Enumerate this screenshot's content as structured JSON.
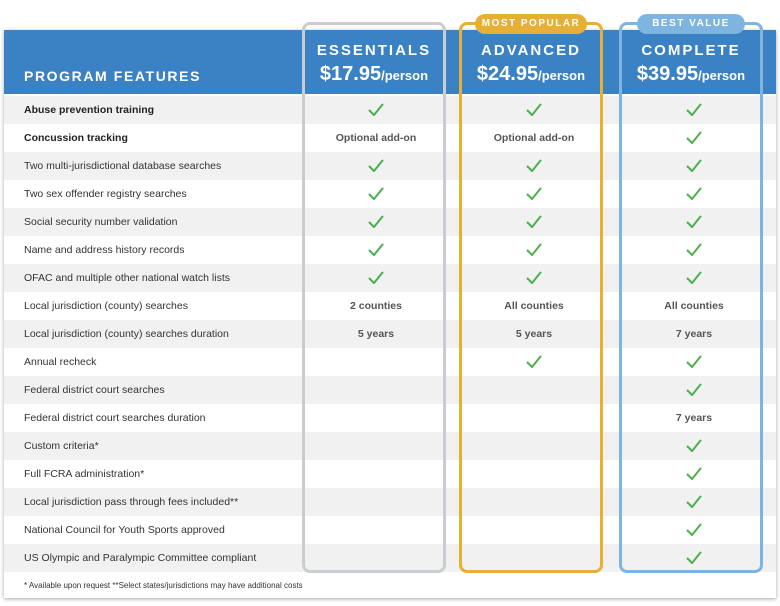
{
  "header": {
    "title": "PROGRAM FEATURES",
    "plans": [
      {
        "name": "ESSENTIALS",
        "price": "$17.95",
        "unit": "/person"
      },
      {
        "name": "ADVANCED",
        "price": "$24.95",
        "unit": "/person"
      },
      {
        "name": "COMPLETE",
        "price": "$39.95",
        "unit": "/person"
      }
    ]
  },
  "badges": {
    "popular": "MOST POPULAR",
    "value": "BEST VALUE"
  },
  "colors": {
    "header": "#3b82c4",
    "check": "#4caf50",
    "popular": "#e5b033",
    "value": "#7db4e0",
    "essentials_frame": "#c9ccd0"
  },
  "rows": [
    {
      "label": "Abuse prevention training",
      "bold": true,
      "cells": [
        "check",
        "check",
        "check"
      ]
    },
    {
      "label": "Concussion tracking",
      "bold": true,
      "cells": [
        "Optional add-on",
        "Optional add-on",
        "check"
      ]
    },
    {
      "label": "Two multi-jurisdictional database searches",
      "cells": [
        "check",
        "check",
        "check"
      ]
    },
    {
      "label": "Two sex offender registry searches",
      "cells": [
        "check",
        "check",
        "check"
      ]
    },
    {
      "label": "Social security number validation",
      "cells": [
        "check",
        "check",
        "check"
      ]
    },
    {
      "label": "Name and address history records",
      "cells": [
        "check",
        "check",
        "check"
      ]
    },
    {
      "label": "OFAC and multiple other national watch lists",
      "cells": [
        "check",
        "check",
        "check"
      ]
    },
    {
      "label": "Local jurisdiction (county) searches",
      "cells": [
        "2 counties",
        "All counties",
        "All counties"
      ]
    },
    {
      "label": "Local jurisdiction (county) searches duration",
      "cells": [
        "5 years",
        "5 years",
        "7 years"
      ]
    },
    {
      "label": "Annual recheck",
      "cells": [
        "",
        "check",
        "check"
      ]
    },
    {
      "label": "Federal district court searches",
      "cells": [
        "",
        "",
        "check"
      ]
    },
    {
      "label": "Federal district court searches duration",
      "cells": [
        "",
        "",
        "7 years"
      ]
    },
    {
      "label": "Custom criteria*",
      "cells": [
        "",
        "",
        "check"
      ]
    },
    {
      "label": "Full FCRA administration*",
      "cells": [
        "",
        "",
        "check"
      ]
    },
    {
      "label": "Local jurisdiction pass through fees included**",
      "cells": [
        "",
        "",
        "check"
      ]
    },
    {
      "label": "National Council for Youth Sports approved",
      "cells": [
        "",
        "",
        "check"
      ]
    },
    {
      "label": "US Olympic and Paralympic Committee compliant",
      "cells": [
        "",
        "",
        "check"
      ]
    }
  ],
  "footnote": "* Available upon request   **Select states/jurisdictions may have additional costs"
}
